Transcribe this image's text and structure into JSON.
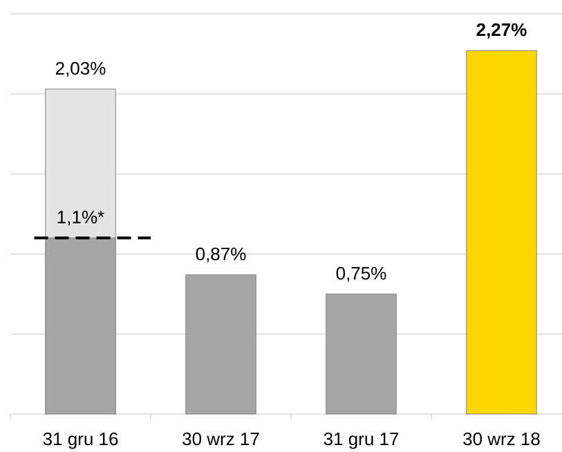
{
  "chart_data": {
    "type": "bar",
    "categories": [
      "31 gru 16",
      "30 wrz 17",
      "31 gru 17",
      "30 wrz 18"
    ],
    "values": [
      2.03,
      0.87,
      0.75,
      2.27
    ],
    "value_labels": [
      "2,03%",
      "0,87%",
      "0,75%",
      "2,27%"
    ],
    "colors": [
      "#e4e4e4",
      "#a6a6a6",
      "#a6a6a6",
      "#ffd700"
    ],
    "highlight": 3,
    "reference": {
      "category": 0,
      "value": 1.1,
      "label": "1,1%*",
      "color": "#a6a6a6"
    },
    "ylim": [
      0,
      2.5
    ],
    "yticks": [
      0,
      0.5,
      1,
      1.5,
      2,
      2.5
    ],
    "grid": true
  }
}
